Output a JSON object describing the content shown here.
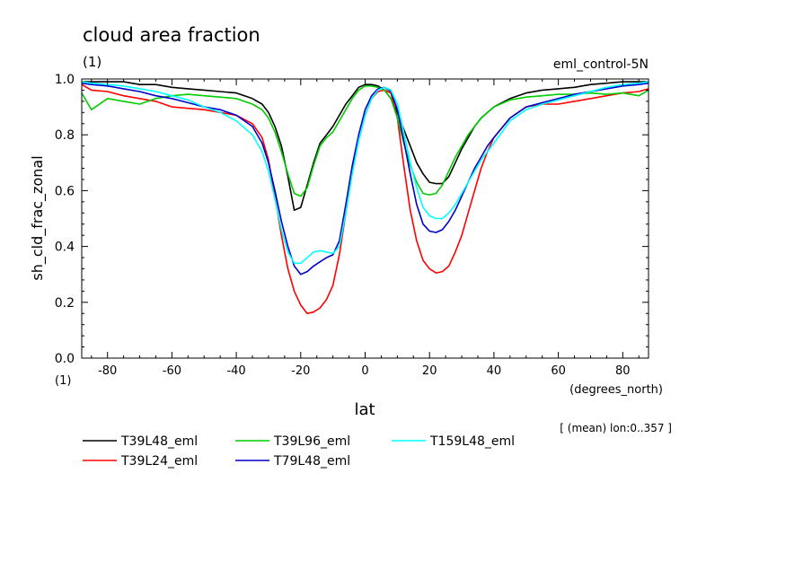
{
  "chart_data": {
    "type": "line",
    "title": "cloud area fraction",
    "title_units": "(1)",
    "experiment_label": "eml_control-5N",
    "xlabel": "lat",
    "x_units": "(degrees_north)",
    "ylabel": "sh_cld_frac_zonal",
    "y_units": "(1)",
    "averaging_note": "[ (mean) lon:0..357 ]",
    "xlim": [
      -88,
      88
    ],
    "ylim": [
      0.0,
      1.0
    ],
    "x_ticks": [
      -80,
      -60,
      -40,
      -20,
      0,
      20,
      40,
      60,
      80
    ],
    "x_tick_labels": [
      "-80",
      "-60",
      "-40",
      "-20",
      "0",
      "20",
      "40",
      "60",
      "80"
    ],
    "y_ticks": [
      0.0,
      0.2,
      0.4,
      0.6,
      0.8,
      1.0
    ],
    "y_tick_labels": [
      "0.0",
      "0.2",
      "0.4",
      "0.6",
      "0.8",
      "1.0"
    ],
    "grid": false,
    "legend_position": "bottom-left",
    "x": [
      -88,
      -85,
      -80,
      -75,
      -70,
      -65,
      -60,
      -55,
      -50,
      -45,
      -40,
      -35,
      -32,
      -30,
      -28,
      -26,
      -24,
      -22,
      -20,
      -18,
      -16,
      -14,
      -12,
      -10,
      -8,
      -6,
      -4,
      -2,
      0,
      2,
      4,
      6,
      8,
      10,
      12,
      14,
      16,
      18,
      20,
      22,
      24,
      26,
      28,
      30,
      32,
      34,
      36,
      38,
      40,
      45,
      50,
      55,
      60,
      65,
      70,
      75,
      80,
      85,
      88
    ],
    "series": [
      {
        "name": "T39L48_eml",
        "color": "#000000",
        "values": [
          0.99,
          0.99,
          0.99,
          0.99,
          0.98,
          0.98,
          0.97,
          0.965,
          0.96,
          0.955,
          0.95,
          0.93,
          0.91,
          0.88,
          0.83,
          0.76,
          0.65,
          0.53,
          0.54,
          0.62,
          0.7,
          0.77,
          0.8,
          0.83,
          0.87,
          0.91,
          0.94,
          0.97,
          0.98,
          0.98,
          0.975,
          0.96,
          0.93,
          0.88,
          0.82,
          0.76,
          0.7,
          0.66,
          0.63,
          0.625,
          0.625,
          0.65,
          0.7,
          0.75,
          0.79,
          0.83,
          0.86,
          0.88,
          0.9,
          0.93,
          0.95,
          0.96,
          0.965,
          0.97,
          0.98,
          0.985,
          0.99,
          0.99,
          0.99
        ]
      },
      {
        "name": "T39L24_eml",
        "color": "#ff0000",
        "values": [
          0.98,
          0.96,
          0.955,
          0.94,
          0.93,
          0.92,
          0.9,
          0.895,
          0.89,
          0.88,
          0.87,
          0.84,
          0.79,
          0.71,
          0.58,
          0.44,
          0.32,
          0.24,
          0.19,
          0.16,
          0.165,
          0.18,
          0.21,
          0.26,
          0.37,
          0.52,
          0.67,
          0.78,
          0.87,
          0.93,
          0.955,
          0.96,
          0.95,
          0.86,
          0.69,
          0.53,
          0.42,
          0.35,
          0.32,
          0.305,
          0.31,
          0.33,
          0.38,
          0.44,
          0.52,
          0.6,
          0.68,
          0.74,
          0.79,
          0.86,
          0.9,
          0.91,
          0.91,
          0.92,
          0.93,
          0.94,
          0.95,
          0.955,
          0.965
        ]
      },
      {
        "name": "T39L96_eml",
        "color": "#00cc00",
        "values": [
          0.95,
          0.89,
          0.93,
          0.92,
          0.91,
          0.93,
          0.94,
          0.945,
          0.94,
          0.935,
          0.93,
          0.91,
          0.89,
          0.86,
          0.81,
          0.74,
          0.66,
          0.59,
          0.58,
          0.61,
          0.69,
          0.76,
          0.79,
          0.81,
          0.85,
          0.89,
          0.93,
          0.96,
          0.975,
          0.975,
          0.97,
          0.96,
          0.93,
          0.86,
          0.77,
          0.69,
          0.63,
          0.59,
          0.585,
          0.59,
          0.62,
          0.67,
          0.72,
          0.76,
          0.8,
          0.83,
          0.86,
          0.88,
          0.9,
          0.925,
          0.935,
          0.94,
          0.945,
          0.945,
          0.95,
          0.945,
          0.95,
          0.94,
          0.96
        ]
      },
      {
        "name": "T79L48_eml",
        "color": "#0000cc",
        "values": [
          0.985,
          0.98,
          0.975,
          0.965,
          0.955,
          0.94,
          0.93,
          0.915,
          0.9,
          0.89,
          0.87,
          0.83,
          0.77,
          0.7,
          0.6,
          0.49,
          0.4,
          0.33,
          0.3,
          0.31,
          0.33,
          0.345,
          0.36,
          0.37,
          0.42,
          0.55,
          0.69,
          0.8,
          0.89,
          0.94,
          0.965,
          0.97,
          0.955,
          0.89,
          0.78,
          0.66,
          0.55,
          0.48,
          0.455,
          0.45,
          0.46,
          0.49,
          0.53,
          0.58,
          0.63,
          0.68,
          0.72,
          0.76,
          0.79,
          0.86,
          0.9,
          0.915,
          0.93,
          0.945,
          0.955,
          0.965,
          0.975,
          0.98,
          0.985
        ]
      },
      {
        "name": "T159L48_eml",
        "color": "#00ffff",
        "values": [
          0.99,
          0.985,
          0.98,
          0.975,
          0.965,
          0.955,
          0.94,
          0.925,
          0.9,
          0.88,
          0.85,
          0.8,
          0.74,
          0.67,
          0.57,
          0.46,
          0.38,
          0.34,
          0.34,
          0.36,
          0.38,
          0.385,
          0.38,
          0.375,
          0.4,
          0.52,
          0.66,
          0.78,
          0.87,
          0.93,
          0.96,
          0.97,
          0.96,
          0.91,
          0.81,
          0.7,
          0.61,
          0.54,
          0.51,
          0.5,
          0.5,
          0.52,
          0.55,
          0.59,
          0.63,
          0.67,
          0.71,
          0.74,
          0.77,
          0.85,
          0.89,
          0.91,
          0.925,
          0.94,
          0.955,
          0.97,
          0.98,
          0.985,
          0.99
        ]
      }
    ]
  }
}
